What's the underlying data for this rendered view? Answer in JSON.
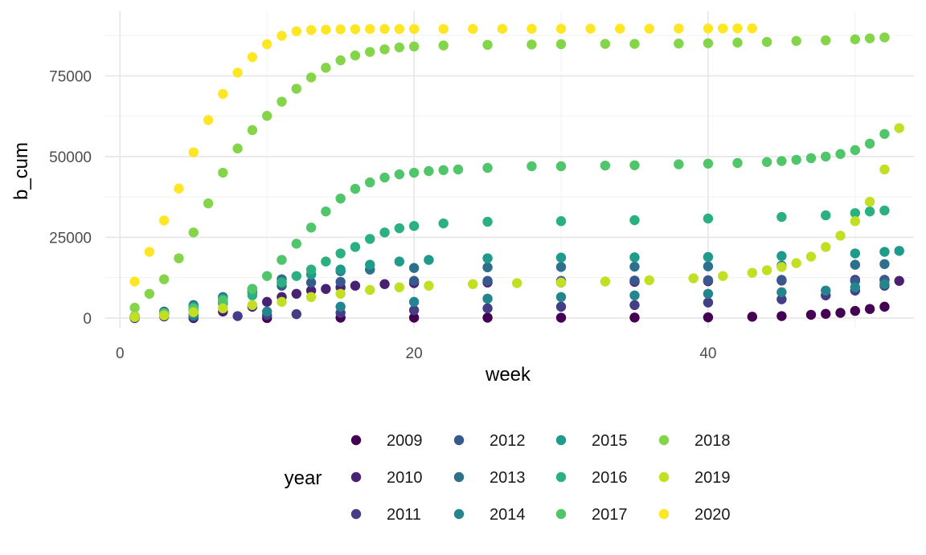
{
  "chart_data": {
    "type": "scatter",
    "xlabel": "week",
    "ylabel": "b_cum",
    "xlim": [
      -1,
      54
    ],
    "ylim": [
      -3000,
      95000
    ],
    "x_ticks": [
      0,
      20,
      40
    ],
    "x_tick_labels": [
      "0",
      "20",
      "40"
    ],
    "y_ticks": [
      0,
      25000,
      50000,
      75000
    ],
    "y_tick_labels": [
      "0",
      "25000",
      "50000",
      "75000"
    ],
    "grid": true,
    "legend": {
      "title": "year",
      "placement": "bottom"
    },
    "series": [
      {
        "name": "2009",
        "color": "#440154",
        "points": [
          [
            1,
            0
          ],
          [
            5,
            0
          ],
          [
            10,
            0
          ],
          [
            15,
            100
          ],
          [
            20,
            100
          ],
          [
            25,
            100
          ],
          [
            30,
            100
          ],
          [
            35,
            150
          ],
          [
            40,
            200
          ],
          [
            43,
            400
          ],
          [
            45,
            600
          ],
          [
            47,
            1000
          ],
          [
            48,
            1300
          ],
          [
            49,
            1600
          ],
          [
            50,
            2200
          ],
          [
            51,
            2800
          ],
          [
            52,
            3500
          ]
        ]
      },
      {
        "name": "2010",
        "color": "#482173",
        "points": [
          [
            1,
            200
          ],
          [
            3,
            500
          ],
          [
            5,
            1000
          ],
          [
            7,
            2000
          ],
          [
            9,
            3500
          ],
          [
            10,
            5000
          ],
          [
            11,
            6500
          ],
          [
            12,
            7500
          ],
          [
            13,
            8500
          ],
          [
            14,
            9000
          ],
          [
            15,
            9500
          ],
          [
            16,
            10000
          ],
          [
            18,
            10500
          ],
          [
            20,
            10800
          ],
          [
            25,
            11000
          ],
          [
            30,
            11000
          ],
          [
            35,
            11200
          ],
          [
            40,
            11400
          ],
          [
            45,
            11600
          ],
          [
            50,
            11800
          ],
          [
            52,
            11800
          ],
          [
            53,
            11500
          ]
        ]
      },
      {
        "name": "2011",
        "color": "#433E85",
        "points": [
          [
            1,
            100
          ],
          [
            5,
            300
          ],
          [
            8,
            600
          ],
          [
            10,
            900
          ],
          [
            12,
            1200
          ],
          [
            15,
            1600
          ],
          [
            20,
            2400
          ],
          [
            25,
            3000
          ],
          [
            30,
            3500
          ],
          [
            35,
            4000
          ],
          [
            40,
            4800
          ],
          [
            45,
            5800
          ],
          [
            48,
            7000
          ],
          [
            50,
            8500
          ],
          [
            52,
            10000
          ]
        ]
      },
      {
        "name": "2012",
        "color": "#38598C",
        "points": [
          [
            1,
            300
          ],
          [
            3,
            1000
          ],
          [
            5,
            2500
          ],
          [
            7,
            5000
          ],
          [
            9,
            8000
          ],
          [
            11,
            10000
          ],
          [
            13,
            11000
          ],
          [
            15,
            11200
          ],
          [
            20,
            11500
          ],
          [
            25,
            11500
          ],
          [
            30,
            11500
          ],
          [
            35,
            11600
          ],
          [
            40,
            11700
          ],
          [
            45,
            11800
          ],
          [
            50,
            11500
          ],
          [
            52,
            11800
          ]
        ]
      },
      {
        "name": "2013",
        "color": "#2D708E",
        "points": [
          [
            1,
            500
          ],
          [
            3,
            2000
          ],
          [
            5,
            4000
          ],
          [
            7,
            6500
          ],
          [
            9,
            9000
          ],
          [
            11,
            12000
          ],
          [
            13,
            13500
          ],
          [
            15,
            14500
          ],
          [
            17,
            15000
          ],
          [
            20,
            15500
          ],
          [
            25,
            15700
          ],
          [
            30,
            15800
          ],
          [
            35,
            15900
          ],
          [
            40,
            16000
          ],
          [
            45,
            16200
          ],
          [
            50,
            16500
          ],
          [
            52,
            16700
          ]
        ]
      },
      {
        "name": "2014",
        "color": "#25858E",
        "points": [
          [
            1,
            200
          ],
          [
            5,
            800
          ],
          [
            10,
            2000
          ],
          [
            15,
            3500
          ],
          [
            20,
            5000
          ],
          [
            25,
            6000
          ],
          [
            30,
            6500
          ],
          [
            35,
            7000
          ],
          [
            40,
            7500
          ],
          [
            45,
            8000
          ],
          [
            48,
            8500
          ],
          [
            50,
            9500
          ],
          [
            52,
            10500
          ]
        ]
      },
      {
        "name": "2015",
        "color": "#1E9B8A",
        "points": [
          [
            1,
            300
          ],
          [
            3,
            1500
          ],
          [
            5,
            3500
          ],
          [
            7,
            6000
          ],
          [
            9,
            8500
          ],
          [
            11,
            11000
          ],
          [
            13,
            13500
          ],
          [
            15,
            15000
          ],
          [
            17,
            16500
          ],
          [
            19,
            17500
          ],
          [
            21,
            18000
          ],
          [
            25,
            18500
          ],
          [
            30,
            18700
          ],
          [
            35,
            18800
          ],
          [
            40,
            18900
          ],
          [
            45,
            19200
          ],
          [
            50,
            20000
          ],
          [
            52,
            20500
          ],
          [
            53,
            20800
          ]
        ]
      },
      {
        "name": "2016",
        "color": "#2BB07F",
        "points": [
          [
            1,
            400
          ],
          [
            3,
            1200
          ],
          [
            5,
            2500
          ],
          [
            7,
            4500
          ],
          [
            9,
            7000
          ],
          [
            11,
            11000
          ],
          [
            12,
            13000
          ],
          [
            13,
            15000
          ],
          [
            14,
            17500
          ],
          [
            15,
            20000
          ],
          [
            16,
            22000
          ],
          [
            17,
            24500
          ],
          [
            18,
            26500
          ],
          [
            19,
            27800
          ],
          [
            20,
            28500
          ],
          [
            22,
            29300
          ],
          [
            25,
            29800
          ],
          [
            30,
            30000
          ],
          [
            35,
            30300
          ],
          [
            40,
            30800
          ],
          [
            45,
            31300
          ],
          [
            48,
            31800
          ],
          [
            50,
            32500
          ],
          [
            51,
            33000
          ],
          [
            52,
            33300
          ]
        ]
      },
      {
        "name": "2017",
        "color": "#51C56A",
        "points": [
          [
            1,
            500
          ],
          [
            3,
            1500
          ],
          [
            5,
            3000
          ],
          [
            7,
            5500
          ],
          [
            9,
            9000
          ],
          [
            10,
            13000
          ],
          [
            11,
            18000
          ],
          [
            12,
            23000
          ],
          [
            13,
            28000
          ],
          [
            14,
            33000
          ],
          [
            15,
            37000
          ],
          [
            16,
            40000
          ],
          [
            17,
            42000
          ],
          [
            18,
            43500
          ],
          [
            19,
            44500
          ],
          [
            20,
            45000
          ],
          [
            21,
            45500
          ],
          [
            22,
            45800
          ],
          [
            23,
            46000
          ],
          [
            25,
            46500
          ],
          [
            28,
            47000
          ],
          [
            30,
            47000
          ],
          [
            33,
            47200
          ],
          [
            35,
            47300
          ],
          [
            38,
            47600
          ],
          [
            40,
            47800
          ],
          [
            42,
            48000
          ],
          [
            44,
            48300
          ],
          [
            45,
            48600
          ],
          [
            46,
            49000
          ],
          [
            47,
            49500
          ],
          [
            48,
            50000
          ],
          [
            49,
            50800
          ],
          [
            50,
            52000
          ],
          [
            51,
            54000
          ],
          [
            52,
            57000
          ]
        ]
      },
      {
        "name": "2018",
        "color": "#85D54A",
        "points": [
          [
            1,
            3200
          ],
          [
            2,
            7500
          ],
          [
            3,
            12000
          ],
          [
            4,
            18500
          ],
          [
            5,
            26500
          ],
          [
            6,
            35500
          ],
          [
            7,
            45000
          ],
          [
            8,
            52500
          ],
          [
            9,
            58200
          ],
          [
            10,
            62600
          ],
          [
            11,
            67000
          ],
          [
            12,
            71000
          ],
          [
            13,
            74500
          ],
          [
            14,
            77500
          ],
          [
            15,
            79800
          ],
          [
            16,
            81300
          ],
          [
            17,
            82400
          ],
          [
            18,
            83200
          ],
          [
            19,
            83800
          ],
          [
            20,
            84100
          ],
          [
            22,
            84400
          ],
          [
            25,
            84600
          ],
          [
            28,
            84700
          ],
          [
            30,
            84800
          ],
          [
            33,
            84900
          ],
          [
            35,
            84900
          ],
          [
            38,
            85000
          ],
          [
            40,
            85100
          ],
          [
            42,
            85300
          ],
          [
            44,
            85500
          ],
          [
            46,
            85800
          ],
          [
            48,
            86000
          ],
          [
            50,
            86300
          ],
          [
            51,
            86600
          ],
          [
            52,
            86900
          ]
        ]
      },
      {
        "name": "2019",
        "color": "#C2DF23",
        "points": [
          [
            1,
            300
          ],
          [
            3,
            800
          ],
          [
            5,
            1800
          ],
          [
            7,
            3000
          ],
          [
            9,
            4000
          ],
          [
            11,
            5000
          ],
          [
            13,
            6500
          ],
          [
            15,
            7500
          ],
          [
            17,
            8700
          ],
          [
            19,
            9500
          ],
          [
            21,
            10000
          ],
          [
            24,
            10500
          ],
          [
            27,
            10800
          ],
          [
            30,
            11000
          ],
          [
            33,
            11300
          ],
          [
            36,
            11700
          ],
          [
            39,
            12300
          ],
          [
            41,
            13000
          ],
          [
            43,
            14000
          ],
          [
            44,
            14800
          ],
          [
            45,
            15800
          ],
          [
            46,
            17000
          ],
          [
            47,
            19000
          ],
          [
            48,
            22000
          ],
          [
            49,
            25500
          ],
          [
            50,
            30000
          ],
          [
            51,
            36000
          ],
          [
            52,
            46000
          ],
          [
            53,
            58800
          ]
        ]
      },
      {
        "name": "2020",
        "color": "#FDE725",
        "points": [
          [
            1,
            11300
          ],
          [
            2,
            20500
          ],
          [
            3,
            30200
          ],
          [
            4,
            40100
          ],
          [
            5,
            51300
          ],
          [
            6,
            61300
          ],
          [
            7,
            69400
          ],
          [
            8,
            76000
          ],
          [
            9,
            80800
          ],
          [
            10,
            84800
          ],
          [
            11,
            87400
          ],
          [
            12,
            88800
          ],
          [
            13,
            89200
          ],
          [
            14,
            89300
          ],
          [
            15,
            89400
          ],
          [
            16,
            89450
          ],
          [
            17,
            89500
          ],
          [
            18,
            89500
          ],
          [
            19,
            89500
          ],
          [
            20,
            89500
          ],
          [
            22,
            89500
          ],
          [
            24,
            89500
          ],
          [
            26,
            89550
          ],
          [
            28,
            89550
          ],
          [
            30,
            89600
          ],
          [
            32,
            89600
          ],
          [
            34,
            89600
          ],
          [
            36,
            89600
          ],
          [
            38,
            89650
          ],
          [
            40,
            89650
          ],
          [
            41,
            89650
          ],
          [
            42,
            89700
          ],
          [
            43,
            89700
          ]
        ]
      }
    ]
  }
}
